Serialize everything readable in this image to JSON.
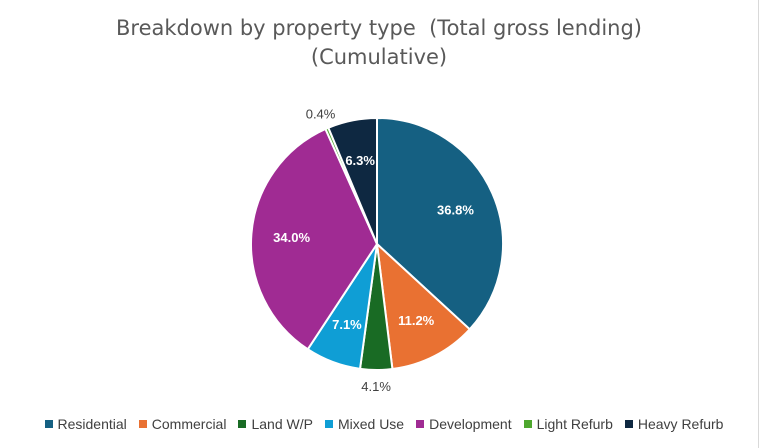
{
  "chart_data": {
    "type": "pie",
    "title_line1": "Breakdown by property type  (Total gross lending)",
    "title_line2": "(Cumulative)",
    "categories": [
      "Residential",
      "Commercial",
      "Land W/P",
      "Mixed Use",
      "Development",
      "Light Refurb",
      "Heavy Refurb"
    ],
    "values": [
      36.8,
      11.2,
      4.1,
      7.1,
      34.0,
      0.4,
      6.3
    ],
    "labels": [
      "36.8%",
      "11.2%",
      "4.1%",
      "7.1%",
      "34.0%",
      "0.4%",
      "6.3%"
    ],
    "colors": [
      "#156082",
      "#E97132",
      "#196B24",
      "#0F9ED5",
      "#A02B93",
      "#4EA72E",
      "#0E2841"
    ],
    "legend_position": "bottom"
  }
}
